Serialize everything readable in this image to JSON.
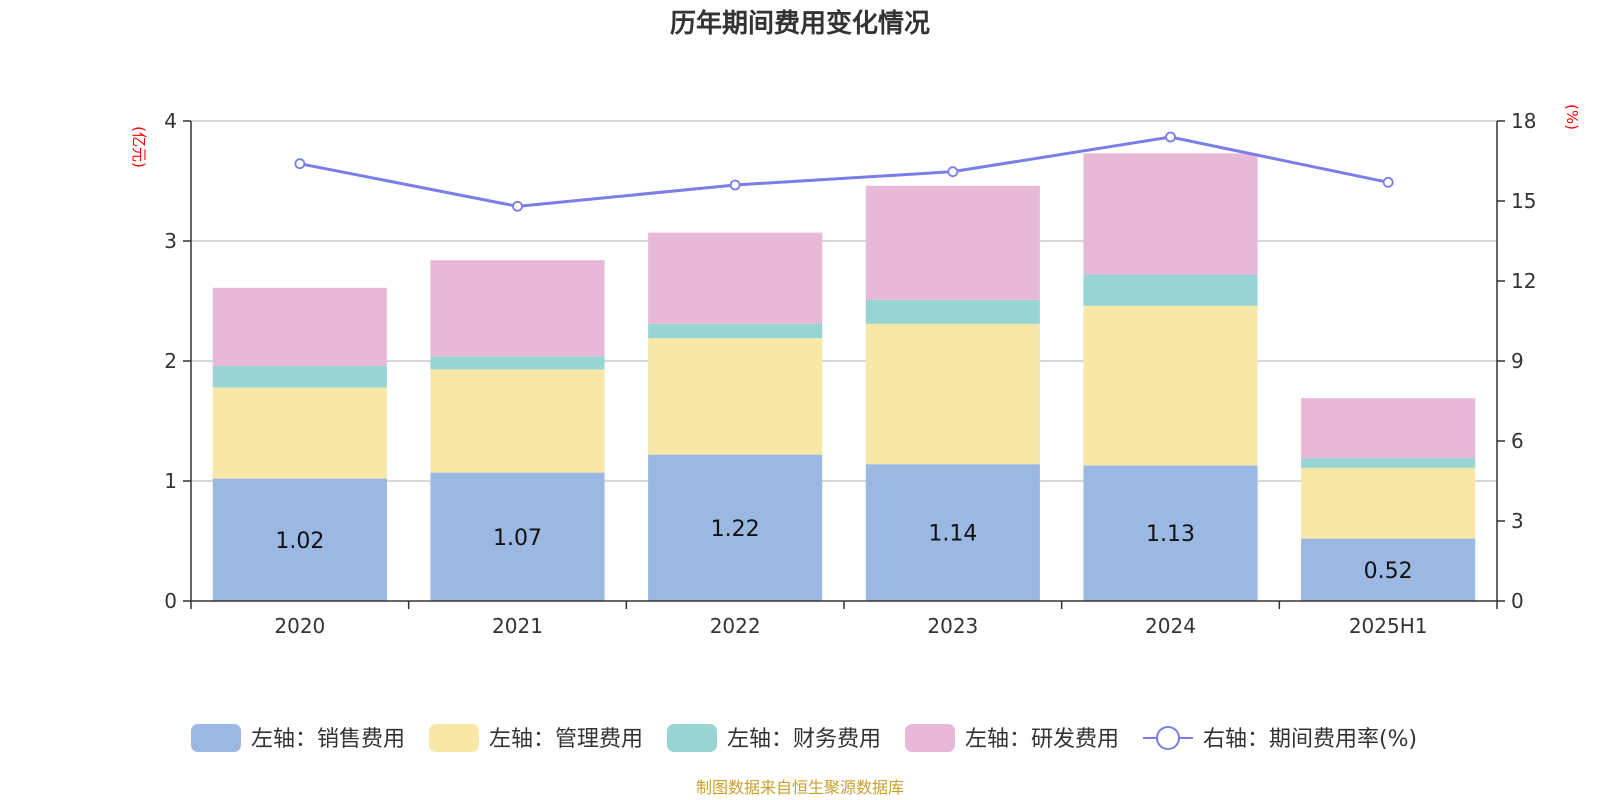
{
  "chart_data": {
    "type": "bar",
    "stacked": true,
    "title": "历年期间费用变化情况",
    "categories": [
      "2020",
      "2021",
      "2022",
      "2023",
      "2024",
      "2025H1"
    ],
    "y_left": {
      "unit": "(亿元)",
      "range": [
        0,
        4
      ],
      "ticks": [
        0,
        1,
        2,
        3,
        4
      ]
    },
    "y_right": {
      "unit": "(%)",
      "range": [
        0,
        18
      ],
      "ticks": [
        0,
        3,
        6,
        9,
        12,
        15,
        18
      ]
    },
    "grid": true,
    "legend_position": "bottom",
    "series": [
      {
        "name": "左轴：销售费用",
        "axis": "left",
        "type": "bar",
        "color": "#9bb8e3",
        "values": [
          1.02,
          1.07,
          1.22,
          1.14,
          1.13,
          0.52
        ],
        "show_labels": true
      },
      {
        "name": "左轴：管理费用",
        "axis": "left",
        "type": "bar",
        "color": "#f8e8a8",
        "values": [
          0.76,
          0.86,
          0.97,
          1.17,
          1.33,
          0.59
        ]
      },
      {
        "name": "左轴：财务费用",
        "axis": "left",
        "type": "bar",
        "color": "#98d4d4",
        "values": [
          0.18,
          0.11,
          0.12,
          0.2,
          0.26,
          0.08
        ]
      },
      {
        "name": "左轴：研发费用",
        "axis": "left",
        "type": "bar",
        "color": "#e8b8d8",
        "values": [
          0.65,
          0.8,
          0.76,
          0.95,
          1.01,
          0.5
        ]
      },
      {
        "name": "右轴：期间费用率(%)",
        "axis": "right",
        "type": "line",
        "color": "#7b7ee8",
        "values": [
          16.4,
          14.8,
          15.6,
          16.1,
          17.4,
          15.7
        ]
      }
    ],
    "source": "制图数据来自恒生聚源数据库"
  }
}
